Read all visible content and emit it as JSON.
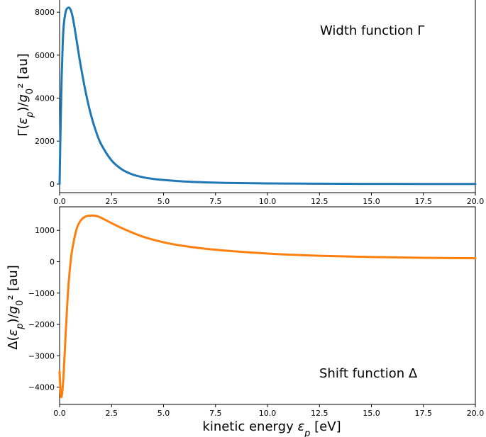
{
  "chart_data": [
    {
      "type": "line",
      "ylabel": "Γ(ε_p)/g_0² [au]",
      "xlabel": "",
      "annotation": "Width function Γ",
      "xlim": [
        0,
        20
      ],
      "ylim": [
        -400,
        8700
      ],
      "xticks": [
        "0.0",
        "2.5",
        "5.0",
        "7.5",
        "10.0",
        "12.5",
        "15.0",
        "17.5",
        "20.0"
      ],
      "yticks": [
        "0",
        "2000",
        "4000",
        "6000",
        "8000"
      ],
      "series": [
        {
          "color": "#1f77b4",
          "x": [
            0,
            0.05,
            0.1,
            0.15,
            0.2,
            0.3,
            0.4,
            0.5,
            0.6,
            0.7,
            0.8,
            1.0,
            1.25,
            1.5,
            1.75,
            2.0,
            2.5,
            3.0,
            3.5,
            4.0,
            4.5,
            5.0,
            6.0,
            7.0,
            8.0,
            10.0,
            12.5,
            15.0,
            17.5,
            20.0
          ],
          "y": [
            0,
            2800,
            5000,
            6500,
            7400,
            8050,
            8200,
            8170,
            7900,
            7400,
            6800,
            5600,
            4300,
            3250,
            2450,
            1850,
            1100,
            680,
            450,
            320,
            240,
            190,
            120,
            80,
            55,
            30,
            15,
            8,
            5,
            3
          ]
        }
      ]
    },
    {
      "type": "line",
      "ylabel": "Δ(ε_p)/g_0² [au]",
      "xlabel": "kinetic energy ε_p [eV]",
      "annotation": "Shift function Δ",
      "xlim": [
        0,
        20
      ],
      "ylim": [
        -4550,
        1750
      ],
      "xticks": [
        "0.0",
        "2.5",
        "5.0",
        "7.5",
        "10.0",
        "12.5",
        "15.0",
        "17.5",
        "20.0"
      ],
      "yticks": [
        "−4000",
        "−3000",
        "−2000",
        "−1000",
        "0",
        "1000"
      ],
      "series": [
        {
          "color": "#ff7f0e",
          "x": [
            0,
            0.05,
            0.1,
            0.15,
            0.2,
            0.3,
            0.4,
            0.5,
            0.6,
            0.8,
            1.0,
            1.25,
            1.5,
            1.75,
            2.0,
            2.5,
            3.0,
            4.0,
            5.0,
            6.0,
            7.5,
            10.0,
            12.5,
            15.0,
            17.5,
            20.0
          ],
          "y": [
            -3500,
            -4200,
            -4300,
            -4000,
            -3500,
            -2200,
            -1000,
            -200,
            350,
            1000,
            1300,
            1440,
            1470,
            1460,
            1400,
            1230,
            1070,
            800,
            620,
            500,
            380,
            260,
            190,
            150,
            125,
            110
          ]
        }
      ]
    }
  ]
}
